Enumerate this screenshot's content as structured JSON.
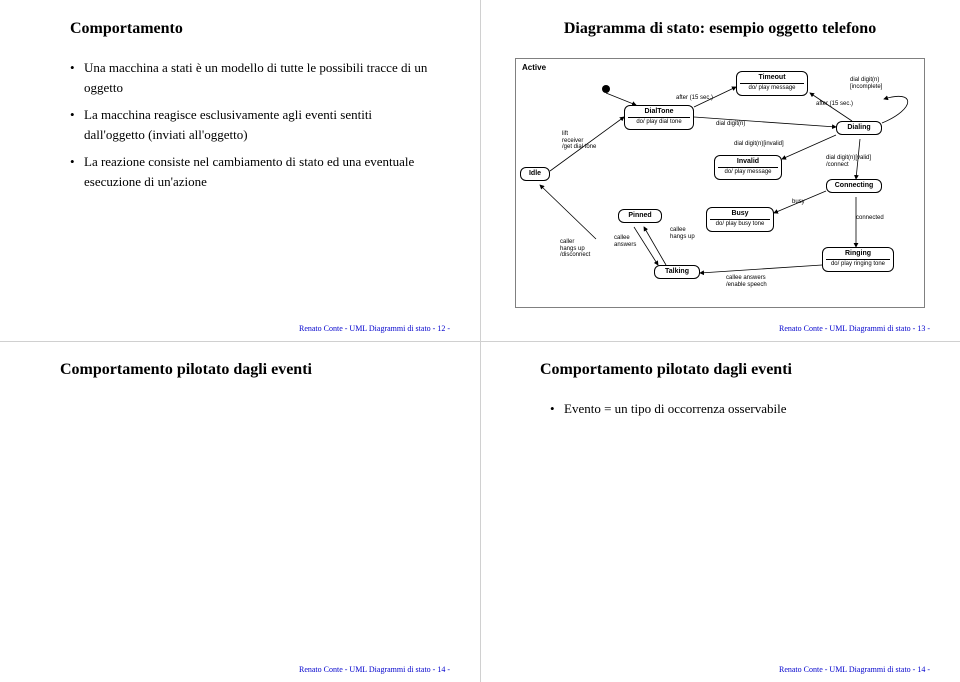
{
  "slides": {
    "tl": {
      "title": "Comportamento",
      "b1": "Una macchina a stati è un modello di tutte le possibili tracce di un oggetto",
      "b2": "La macchina reagisce esclusivamente agli eventi sentiti dall'oggetto (inviati all'oggetto)",
      "b3": "La reazione consiste nel cambiamento di stato ed una eventuale esecuzione di un'azione",
      "footer": "Renato Conte - UML Diagrammi di stato - 12  -"
    },
    "tr": {
      "title": "Diagramma di stato: esempio oggetto telefono",
      "footer": "Renato Conte - UML Diagrammi di stato - 13  -",
      "diagram": {
        "outer": "Active",
        "states": {
          "idle": "Idle",
          "dialtone": {
            "name": "DialTone",
            "act": "do/ play dial tone"
          },
          "timeout": {
            "name": "Timeout",
            "act": "do/ play message"
          },
          "dialing": "Dialing",
          "invalid": {
            "name": "Invalid",
            "act": "do/ play message"
          },
          "connecting": "Connecting",
          "pinned": "Pinned",
          "busy": {
            "name": "Busy",
            "act": "do/ play busy tone"
          },
          "ringing": {
            "name": "Ringing",
            "act": "do/ play ringing tone"
          },
          "talking": "Talking"
        },
        "labels": {
          "lift": "lift\\nreceiver\\n/get dial tone",
          "after15a": "after (15 sec.)",
          "after15b": "after (15 sec.)",
          "dialdigit": "dial digit(n)",
          "dialinvalid": "dial digit(n)[invalid]",
          "dialincomplete": "dial digit(n)\\n[incomplete]",
          "dialvalid": "dial digit(n)[valid]\\n/connect",
          "busyl": "busy",
          "connected": "connected",
          "calleeanswers": "callee\\nanswers",
          "calleehangs": "callee\\nhangs up",
          "callerhangs": "caller\\nhangs up\\n/disconnect",
          "calleeans2": "callee answers\\n/enable speech"
        }
      }
    },
    "bl": {
      "title": "Comportamento pilotato dagli eventi",
      "footer": "Renato Conte - UML Diagrammi di stato - 14  -"
    },
    "br": {
      "title": "Comportamento pilotato dagli eventi",
      "b1": "Evento = un tipo di occorrenza osservabile",
      "footer": "Renato Conte - UML Diagrammi di stato - 14  -"
    }
  }
}
